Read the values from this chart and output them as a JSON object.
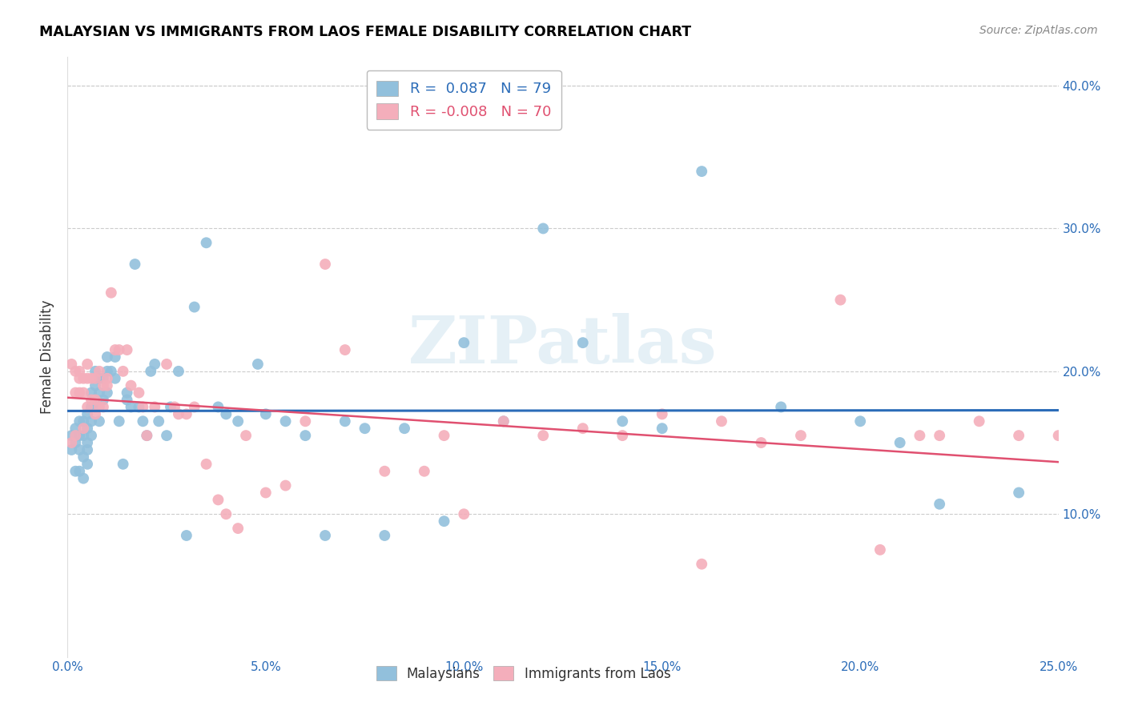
{
  "title": "MALAYSIAN VS IMMIGRANTS FROM LAOS FEMALE DISABILITY CORRELATION CHART",
  "source": "Source: ZipAtlas.com",
  "ylabel": "Female Disability",
  "xlim": [
    0.0,
    0.25
  ],
  "ylim": [
    0.0,
    0.42
  ],
  "blue_R": 0.087,
  "blue_N": 79,
  "pink_R": -0.008,
  "pink_N": 70,
  "blue_color": "#92C0DC",
  "pink_color": "#F4AEBB",
  "blue_line_color": "#2B6CB8",
  "pink_line_color": "#E05070",
  "watermark": "ZIPatlas",
  "blue_intercept": 0.158,
  "blue_slope": 0.1,
  "pink_intercept": 0.162,
  "pink_slope": -0.005,
  "blue_points_x": [
    0.001,
    0.001,
    0.002,
    0.002,
    0.002,
    0.003,
    0.003,
    0.003,
    0.003,
    0.004,
    0.004,
    0.004,
    0.004,
    0.005,
    0.005,
    0.005,
    0.005,
    0.005,
    0.006,
    0.006,
    0.006,
    0.006,
    0.007,
    0.007,
    0.007,
    0.008,
    0.008,
    0.008,
    0.009,
    0.009,
    0.01,
    0.01,
    0.01,
    0.011,
    0.012,
    0.012,
    0.013,
    0.014,
    0.015,
    0.015,
    0.016,
    0.017,
    0.018,
    0.019,
    0.02,
    0.021,
    0.022,
    0.023,
    0.025,
    0.026,
    0.028,
    0.03,
    0.032,
    0.035,
    0.038,
    0.04,
    0.043,
    0.048,
    0.05,
    0.055,
    0.06,
    0.065,
    0.07,
    0.075,
    0.08,
    0.085,
    0.095,
    0.1,
    0.11,
    0.12,
    0.13,
    0.14,
    0.15,
    0.16,
    0.18,
    0.2,
    0.21,
    0.22,
    0.24
  ],
  "blue_points_y": [
    0.155,
    0.145,
    0.13,
    0.15,
    0.16,
    0.145,
    0.155,
    0.165,
    0.13,
    0.14,
    0.155,
    0.165,
    0.125,
    0.15,
    0.16,
    0.17,
    0.145,
    0.135,
    0.165,
    0.155,
    0.175,
    0.185,
    0.2,
    0.175,
    0.19,
    0.185,
    0.195,
    0.165,
    0.195,
    0.18,
    0.21,
    0.185,
    0.2,
    0.2,
    0.21,
    0.195,
    0.165,
    0.135,
    0.18,
    0.185,
    0.175,
    0.275,
    0.175,
    0.165,
    0.155,
    0.2,
    0.205,
    0.165,
    0.155,
    0.175,
    0.2,
    0.085,
    0.245,
    0.29,
    0.175,
    0.17,
    0.165,
    0.205,
    0.17,
    0.165,
    0.155,
    0.085,
    0.165,
    0.16,
    0.085,
    0.16,
    0.095,
    0.22,
    0.165,
    0.3,
    0.22,
    0.165,
    0.16,
    0.34,
    0.175,
    0.165,
    0.15,
    0.107,
    0.115
  ],
  "pink_points_x": [
    0.001,
    0.001,
    0.002,
    0.002,
    0.002,
    0.003,
    0.003,
    0.003,
    0.004,
    0.004,
    0.004,
    0.005,
    0.005,
    0.005,
    0.006,
    0.006,
    0.007,
    0.007,
    0.007,
    0.008,
    0.008,
    0.009,
    0.009,
    0.01,
    0.01,
    0.011,
    0.012,
    0.013,
    0.014,
    0.015,
    0.016,
    0.018,
    0.019,
    0.02,
    0.022,
    0.025,
    0.027,
    0.028,
    0.03,
    0.032,
    0.035,
    0.038,
    0.04,
    0.043,
    0.045,
    0.05,
    0.055,
    0.06,
    0.065,
    0.07,
    0.08,
    0.09,
    0.095,
    0.1,
    0.11,
    0.12,
    0.13,
    0.14,
    0.15,
    0.16,
    0.165,
    0.175,
    0.185,
    0.195,
    0.205,
    0.215,
    0.22,
    0.23,
    0.24,
    0.25
  ],
  "pink_points_y": [
    0.15,
    0.205,
    0.155,
    0.185,
    0.2,
    0.195,
    0.185,
    0.2,
    0.195,
    0.16,
    0.185,
    0.195,
    0.175,
    0.205,
    0.195,
    0.18,
    0.195,
    0.18,
    0.17,
    0.175,
    0.2,
    0.175,
    0.19,
    0.19,
    0.195,
    0.255,
    0.215,
    0.215,
    0.2,
    0.215,
    0.19,
    0.185,
    0.175,
    0.155,
    0.175,
    0.205,
    0.175,
    0.17,
    0.17,
    0.175,
    0.135,
    0.11,
    0.1,
    0.09,
    0.155,
    0.115,
    0.12,
    0.165,
    0.275,
    0.215,
    0.13,
    0.13,
    0.155,
    0.1,
    0.165,
    0.155,
    0.16,
    0.155,
    0.17,
    0.065,
    0.165,
    0.15,
    0.155,
    0.25,
    0.075,
    0.155,
    0.155,
    0.165,
    0.155,
    0.155
  ]
}
